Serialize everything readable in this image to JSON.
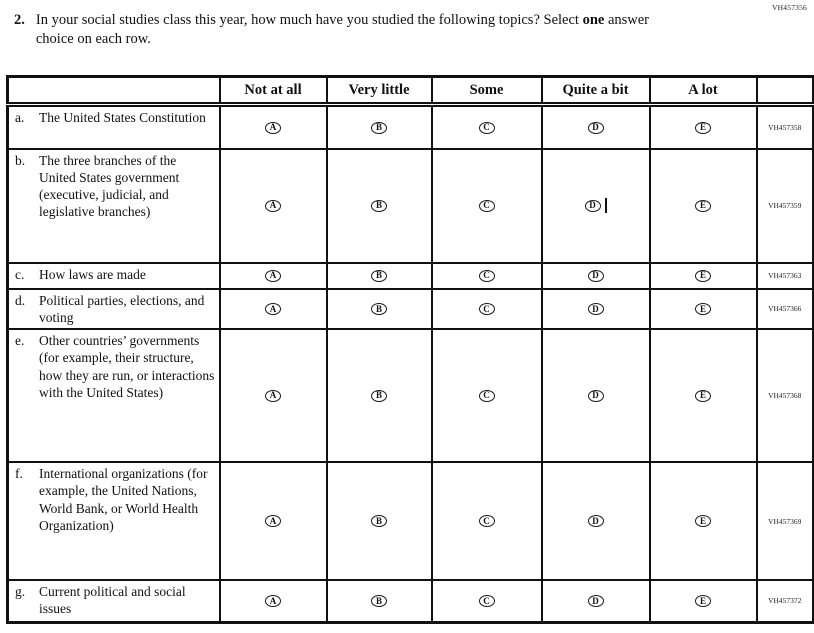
{
  "page": {
    "form_id": "VH457356"
  },
  "question": {
    "number": "2.",
    "text_before_bold": "In your social studies class this year, how much have you studied the following topics? Select ",
    "bold_word": "one",
    "text_after_bold": " answer choice on each row."
  },
  "table": {
    "columns": [
      "Not at all",
      "Very little",
      "Some",
      "Quite a bit",
      "A lot"
    ],
    "options": [
      "A",
      "B",
      "C",
      "D",
      "E"
    ],
    "rows": [
      {
        "letter": "a.",
        "topic": "The United States Constitution",
        "code": "VH457358"
      },
      {
        "letter": "b.",
        "topic": "The three branches of the United States government (executive, judicial, and legislative branches)",
        "code": "VH457359"
      },
      {
        "letter": "c.",
        "topic": "How laws are made",
        "code": "VH457363"
      },
      {
        "letter": "d.",
        "topic": "Political parties, elections, and voting",
        "code": "VH457366"
      },
      {
        "letter": "e.",
        "topic": "Other countries’ governments (for example, their structure, how they are run, or interactions with the United States)",
        "code": "VH457368"
      },
      {
        "letter": "f.",
        "topic": "International organizations (for example, the United Nations, World Bank, or World Health Organization)",
        "code": "VH457369"
      },
      {
        "letter": "g.",
        "topic": "Current political and social issues",
        "code": "VH457372"
      }
    ]
  }
}
